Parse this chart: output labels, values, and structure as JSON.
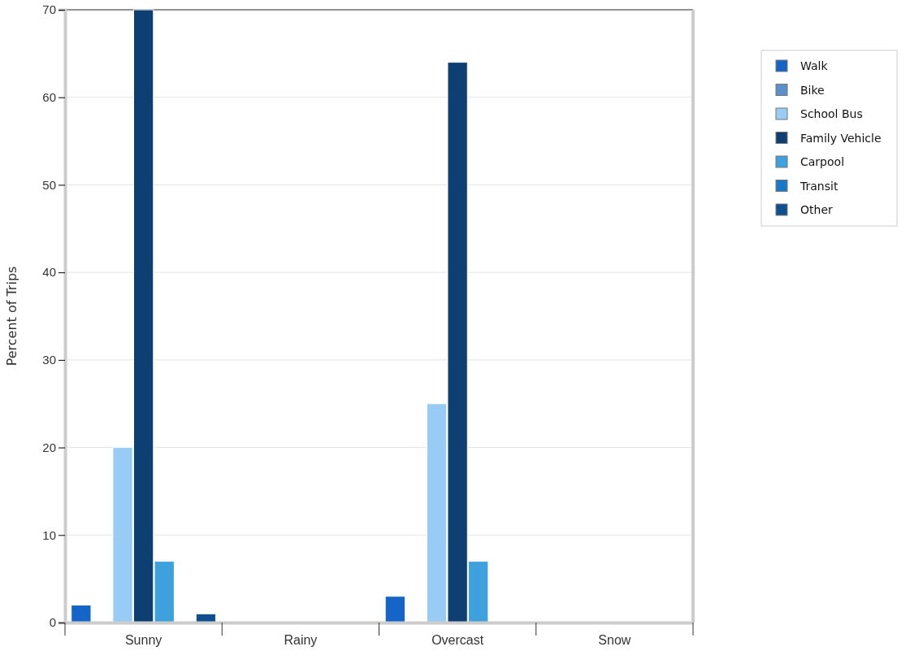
{
  "chart_data": {
    "type": "bar",
    "ylabel": "Percent of Trips",
    "categories": [
      "Sunny",
      "Rainy",
      "Overcast",
      "Snow"
    ],
    "series": [
      {
        "name": "Walk",
        "color": "#1565c8",
        "values": [
          2,
          0,
          3,
          0
        ]
      },
      {
        "name": "Bike",
        "color": "#5b8fcc",
        "values": [
          0,
          0,
          0,
          0
        ]
      },
      {
        "name": "School Bus",
        "color": "#99ccf5",
        "values": [
          20,
          0,
          25,
          0
        ]
      },
      {
        "name": "Family Vehicle",
        "color": "#0d3f73",
        "values": [
          70,
          0,
          64,
          0
        ]
      },
      {
        "name": "Carpool",
        "color": "#3ea0dc",
        "values": [
          7,
          0,
          7,
          0
        ]
      },
      {
        "name": "Transit",
        "color": "#1a78c8",
        "values": [
          0,
          0,
          0,
          0
        ]
      },
      {
        "name": "Other",
        "color": "#0f4f8f",
        "values": [
          1,
          0,
          0,
          0
        ]
      }
    ],
    "ylim": [
      0,
      70
    ],
    "yticks": [
      0,
      10,
      20,
      30,
      40,
      50,
      60,
      70
    ],
    "grid": "y",
    "legend": "top right"
  }
}
